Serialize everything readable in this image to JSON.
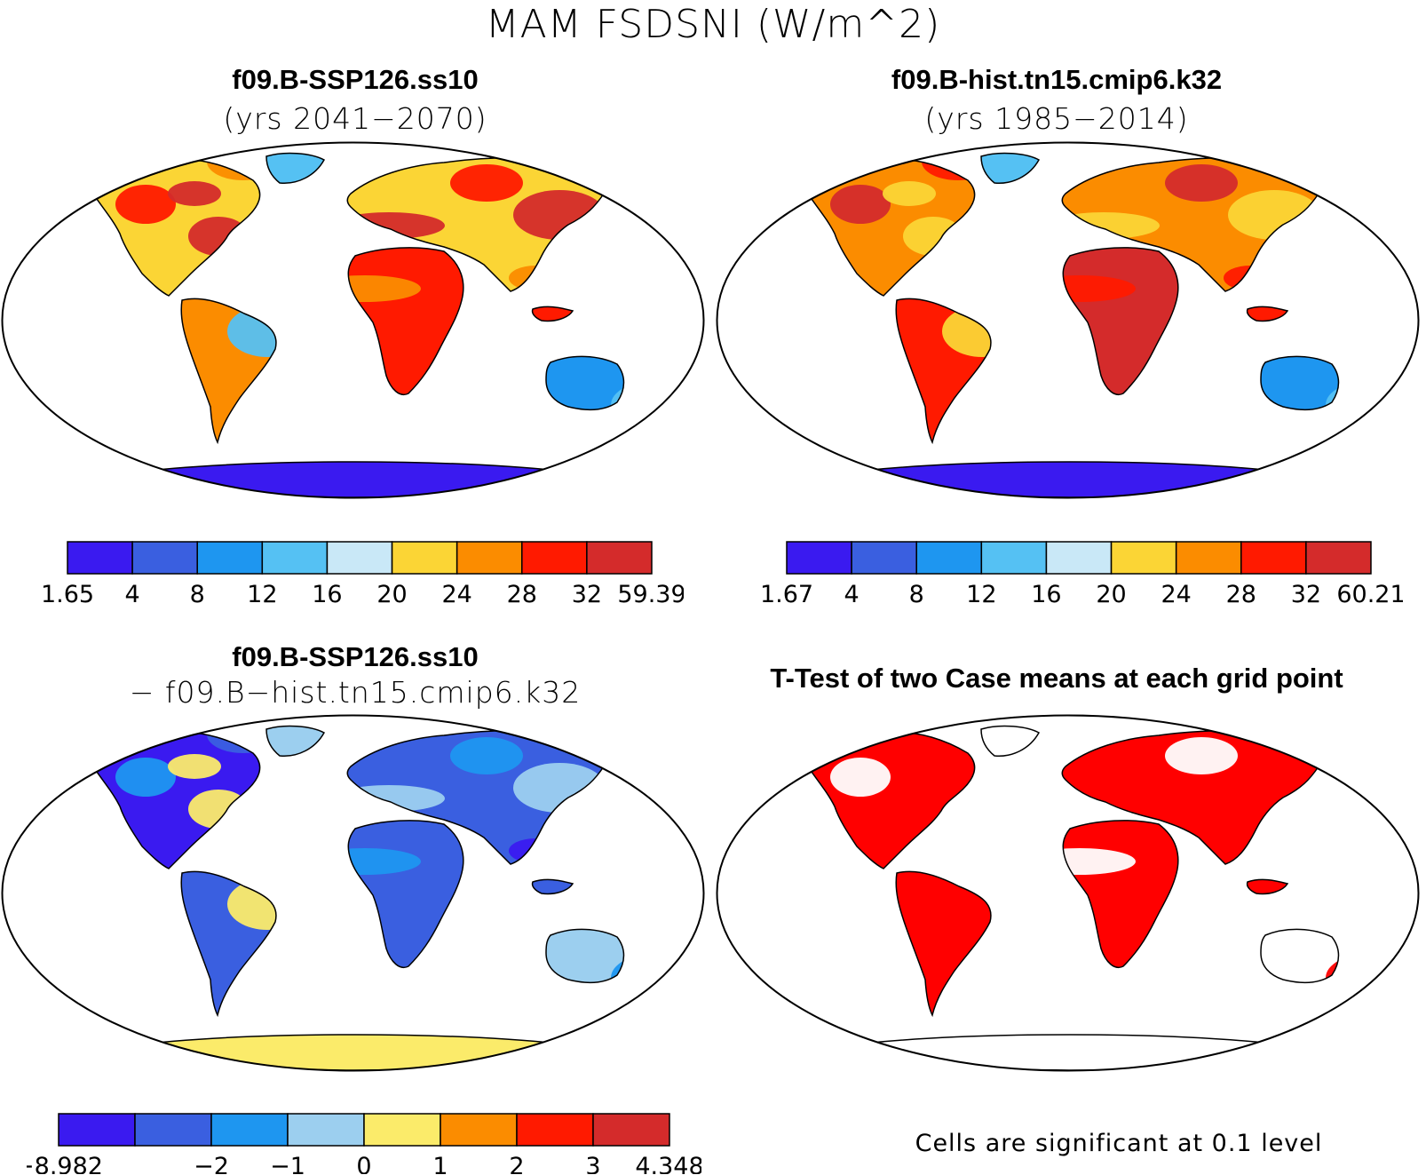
{
  "title": "MAM FSDSNI (W/m^2)",
  "panels": [
    {
      "id": "case1",
      "title_line1": "f09.B-SSP126.ss10",
      "title_line2": "(yrs 2041−2070)",
      "colorbar": {
        "colors": [
          "#3a1af0",
          "#3a5fe0",
          "#1e96f0",
          "#55c1f3",
          "#c9e8f7",
          "#fbd535",
          "#fb8c00",
          "#ff1a00",
          "#d42b2b"
        ],
        "tick_labels": [
          "1.65",
          "4",
          "8",
          "12",
          "16",
          "20",
          "24",
          "28",
          "32",
          "59.39"
        ]
      }
    },
    {
      "id": "case2",
      "title_line1": "f09.B-hist.tn15.cmip6.k32",
      "title_line2": "(yrs 1985−2014)",
      "colorbar": {
        "colors": [
          "#3a1af0",
          "#3a5fe0",
          "#1e96f0",
          "#55c1f3",
          "#c9e8f7",
          "#fbd535",
          "#fb8c00",
          "#ff1a00",
          "#d42b2b"
        ],
        "tick_labels": [
          "1.67",
          "4",
          "8",
          "12",
          "16",
          "20",
          "24",
          "28",
          "32",
          "60.21"
        ]
      }
    },
    {
      "id": "difference",
      "title_line1": "f09.B-SSP126.ss10",
      "title_line2": "− f09.B−hist.tn15.cmip6.k32",
      "colorbar": {
        "colors": [
          "#3a1af0",
          "#3a5fe0",
          "#1e96f0",
          "#9ccfef",
          "#fbeb6a",
          "#fb8c00",
          "#ff1a00",
          "#d42b2b"
        ],
        "tick_labels": [
          "−8.982",
          "",
          "−2",
          "−1",
          "0",
          "1",
          "2",
          "3",
          "4.348"
        ]
      }
    },
    {
      "id": "ttest",
      "title_line1": "T-Test of two Case means at each grid point",
      "note": "Cells are significant at 0.1 level",
      "significant_color": "#ff0000"
    }
  ]
}
